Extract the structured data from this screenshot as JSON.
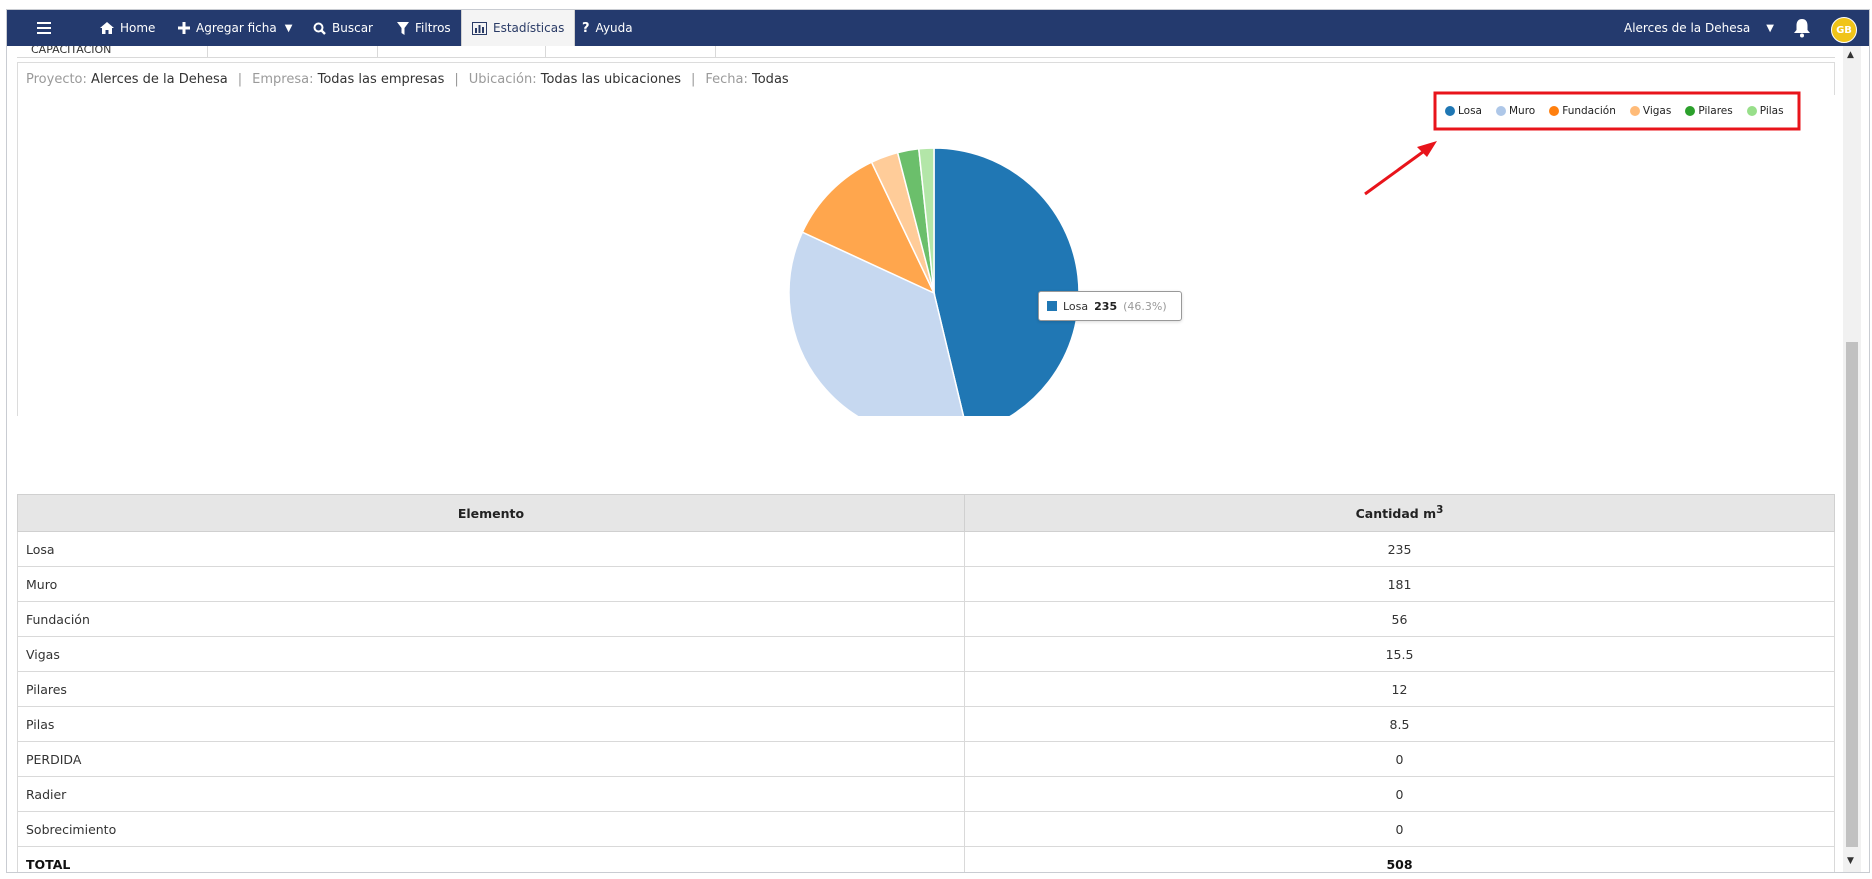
{
  "nav": {
    "home": "Home",
    "add_record": "Agregar ficha",
    "search": "Buscar",
    "filters": "Filtros",
    "stats": "Estadísticas",
    "help": "Ayuda",
    "project_selector": "Alerces de la Dehesa",
    "avatar_initials": "GB"
  },
  "cut_row": {
    "label": "CAPACITACION"
  },
  "filters": {
    "project_label": "Proyecto:",
    "project_value": "Alerces de la Dehesa",
    "company_label": "Empresa:",
    "company_value": "Todas las empresas",
    "location_label": "Ubicación:",
    "location_value": "Todas las ubicaciones",
    "date_label": "Fecha:",
    "date_value": "Todas",
    "separator": "|"
  },
  "chart_data": {
    "type": "pie",
    "categories": [
      "Losa",
      "Muro",
      "Fundación",
      "Vigas",
      "Pilares",
      "Pilas"
    ],
    "values": [
      235,
      181,
      56,
      15.5,
      12,
      8.5
    ],
    "colors": [
      "#1f77b4",
      "#aec7e8",
      "#ff7f0e",
      "#ffbb78",
      "#2ca02c",
      "#98df8a"
    ],
    "slice_colors": [
      "#2077b4",
      "#c6d8f0",
      "#ffa64d",
      "#ffcc99",
      "#6bbf6b",
      "#b3e6a8"
    ],
    "legend_position": "top-right",
    "tooltip": {
      "label": "Losa",
      "value": "235",
      "percent": "(46.3%)"
    }
  },
  "table": {
    "headers": [
      "Elemento",
      "Cantidad m",
      "3"
    ],
    "rows": [
      [
        "Losa",
        "235"
      ],
      [
        "Muro",
        "181"
      ],
      [
        "Fundación",
        "56"
      ],
      [
        "Vigas",
        "15.5"
      ],
      [
        "Pilares",
        "12"
      ],
      [
        "Pilas",
        "8.5"
      ],
      [
        "PERDIDA",
        "0"
      ],
      [
        "Radier",
        "0"
      ],
      [
        "Sobrecimiento",
        "0"
      ]
    ],
    "total_label": "TOTAL",
    "total_value": "508"
  },
  "annotation": {
    "color": "#e8141b"
  }
}
